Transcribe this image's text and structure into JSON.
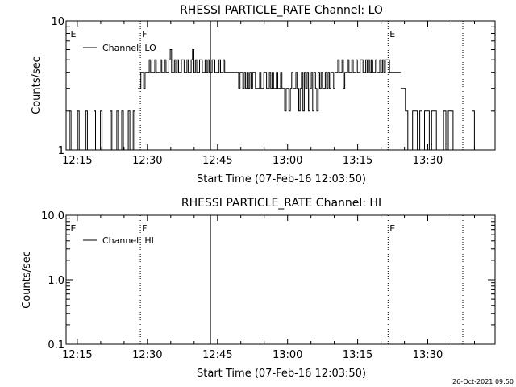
{
  "colors": {
    "background": "#ffffff",
    "foreground": "#000000"
  },
  "footer_timestamp": "26-Oct-2021 09:50",
  "chart_data": [
    {
      "type": "line",
      "title": "RHESSI PARTICLE_RATE Channel: LO",
      "xlabel": "Start Time (07-Feb-16 12:03:50)",
      "ylabel": "Counts/sec",
      "y_scale": "log",
      "ylim": [
        1,
        10
      ],
      "y_ticks": [
        "1",
        "10"
      ],
      "xlim_minutes": [
        12.6,
        104.4
      ],
      "x_ticks": [
        {
          "label": "12:15",
          "minute": 15
        },
        {
          "label": "12:30",
          "minute": 30
        },
        {
          "label": "12:45",
          "minute": 45
        },
        {
          "label": "13:00",
          "minute": 60
        },
        {
          "label": "13:15",
          "minute": 75
        },
        {
          "label": "13:30",
          "minute": 90
        }
      ],
      "legend": "top-left",
      "series": [
        {
          "name": "Channel: LO",
          "segments": [
            {
              "x_min": 12.6,
              "x_max": 28.0,
              "values": [
                1,
                1,
                2,
                1,
                1,
                1,
                1,
                2,
                1,
                1,
                1,
                1,
                2,
                1,
                1,
                1,
                1,
                2,
                1,
                1,
                1,
                2,
                1,
                1,
                1,
                1,
                1,
                2,
                1,
                1,
                1,
                2,
                1,
                1,
                2,
                1,
                1,
                1,
                2,
                1,
                1,
                2,
                1,
                1
              ]
            },
            {
              "x_min": 28.0,
              "x_max": 84.2,
              "values": [
                3,
                3,
                4,
                4,
                3,
                4,
                4,
                4,
                5,
                4,
                4,
                4,
                5,
                4,
                4,
                4,
                5,
                4,
                4,
                5,
                4,
                4,
                5,
                6,
                4,
                4,
                5,
                4,
                5,
                4,
                4,
                5,
                5,
                4,
                4,
                5,
                4,
                4,
                5,
                6,
                4,
                5,
                4,
                4,
                5,
                5,
                4,
                4,
                5,
                4,
                5,
                4,
                4,
                5,
                5,
                4,
                4,
                4,
                5,
                4,
                4,
                5,
                4,
                4,
                4,
                4,
                4,
                4,
                4,
                4,
                4,
                4,
                3,
                4,
                4,
                3,
                4,
                3,
                4,
                3,
                4,
                3,
                4,
                4,
                3,
                3,
                3,
                4,
                3,
                3,
                4,
                4,
                3,
                3,
                4,
                3,
                4,
                3,
                3,
                4,
                3,
                3,
                4,
                3,
                3,
                2,
                3,
                3,
                2,
                3,
                4,
                3,
                3,
                4,
                3,
                2,
                3,
                4,
                2,
                4,
                3,
                4,
                2,
                3,
                4,
                2,
                4,
                3,
                2,
                4,
                3,
                4,
                3,
                3,
                4,
                3,
                4,
                3,
                4,
                4,
                3,
                4,
                4,
                5,
                4,
                4,
                5,
                3,
                4,
                4,
                5,
                4,
                4,
                5,
                4,
                4,
                5,
                4,
                4,
                5,
                5,
                4,
                4,
                5,
                4,
                5,
                4,
                5,
                4,
                4,
                5,
                4,
                4,
                5,
                4,
                5,
                4,
                5,
                5,
                5,
                4,
                4,
                4,
                4,
                4,
                4,
                4,
                4
              ]
            },
            {
              "x_min": 84.2,
              "x_max": 100.5,
              "values": [
                3,
                3,
                2,
                1,
                1,
                2,
                2,
                1,
                2,
                1,
                2,
                2,
                1,
                2,
                2,
                1,
                1,
                1,
                2,
                1,
                2,
                2,
                1,
                1,
                1,
                1,
                1,
                1,
                1,
                1,
                2,
                1
              ]
            }
          ]
        }
      ],
      "markers": [
        {
          "label": "E",
          "minute": 13.2,
          "style": "none"
        },
        {
          "label": "F",
          "minute": 28.5,
          "style": "dotted"
        },
        {
          "label": "",
          "minute": 43.5,
          "style": "solid"
        },
        {
          "label": "E",
          "minute": 81.5,
          "style": "dotted"
        },
        {
          "label": "",
          "minute": 97.5,
          "style": "dotted"
        }
      ]
    },
    {
      "type": "line",
      "title": "RHESSI PARTICLE_RATE Channel: HI",
      "xlabel": "Start Time (07-Feb-16 12:03:50)",
      "ylabel": "Counts/sec",
      "y_scale": "log",
      "ylim": [
        0.1,
        10
      ],
      "y_ticks": [
        "0.1",
        "1.0",
        "10.0"
      ],
      "xlim_minutes": [
        12.6,
        104.4
      ],
      "x_ticks": [
        {
          "label": "12:15",
          "minute": 15
        },
        {
          "label": "12:30",
          "minute": 30
        },
        {
          "label": "12:45",
          "minute": 45
        },
        {
          "label": "13:00",
          "minute": 60
        },
        {
          "label": "13:15",
          "minute": 75
        },
        {
          "label": "13:30",
          "minute": 90
        }
      ],
      "legend": "top-left",
      "series": [
        {
          "name": "Channel: HI",
          "segments": []
        }
      ],
      "markers": [
        {
          "label": "E",
          "minute": 13.2,
          "style": "none"
        },
        {
          "label": "F",
          "minute": 28.5,
          "style": "dotted"
        },
        {
          "label": "",
          "minute": 43.5,
          "style": "solid"
        },
        {
          "label": "E",
          "minute": 81.5,
          "style": "dotted"
        },
        {
          "label": "",
          "minute": 97.5,
          "style": "dotted"
        }
      ]
    }
  ]
}
